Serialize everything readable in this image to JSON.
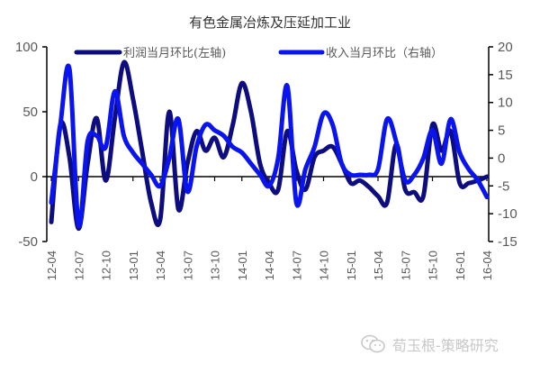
{
  "title": "有色金属冶炼及压延加工业",
  "watermark": "荀玉根-策略研究",
  "colors": {
    "profit": "#0d0d80",
    "revenue": "#0a14f0",
    "axis": "#000000",
    "text": "#595959"
  },
  "chart_data": {
    "type": "line",
    "title": "有色金属冶炼及压延加工业",
    "xlabel": "",
    "ylabel_left": "利润当月环比",
    "ylabel_right": "收入当月环比",
    "ylim_left": [
      -50,
      100
    ],
    "ylim_right": [
      -15,
      20
    ],
    "yticks_left": [
      100,
      50,
      0,
      -50
    ],
    "yticks_right": [
      20,
      15,
      10,
      5,
      0,
      -5,
      -10,
      -15
    ],
    "grid": false,
    "legend_position": "top",
    "x_tick_labels": [
      "12-04",
      "12-07",
      "12-10",
      "13-01",
      "13-04",
      "13-07",
      "13-10",
      "14-01",
      "14-04",
      "14-07",
      "14-10",
      "15-01",
      "15-04",
      "15-07",
      "15-10",
      "16-01",
      "16-04"
    ],
    "x": [
      "12-04",
      "12-05",
      "12-06",
      "12-07",
      "12-08",
      "12-09",
      "12-10",
      "12-11",
      "12-12",
      "13-01",
      "13-02",
      "13-03",
      "13-04",
      "13-05",
      "13-06",
      "13-07",
      "13-08",
      "13-09",
      "13-10",
      "13-11",
      "13-12",
      "14-01",
      "14-02",
      "14-03",
      "14-04",
      "14-05",
      "14-06",
      "14-07",
      "14-08",
      "14-09",
      "14-10",
      "14-11",
      "14-12",
      "15-01",
      "15-02",
      "15-03",
      "15-04",
      "15-05",
      "15-06",
      "15-07",
      "15-08",
      "15-09",
      "15-10",
      "15-11",
      "15-12",
      "16-01",
      "16-02",
      "16-03",
      "16-04"
    ],
    "series": [
      {
        "name": "利润当月环比(左轴)",
        "axis": "left",
        "values": [
          -35,
          40,
          15,
          -40,
          10,
          45,
          -3,
          45,
          88,
          60,
          20,
          -20,
          -33,
          50,
          -25,
          10,
          35,
          20,
          30,
          15,
          40,
          72,
          50,
          10,
          -5,
          -10,
          35,
          5,
          -10,
          15,
          20,
          23,
          10,
          -5,
          -3,
          -8,
          -15,
          -20,
          25,
          -10,
          -12,
          -15,
          40,
          20,
          35,
          -5,
          -5,
          -3,
          0
        ]
      },
      {
        "name": "收入当月环比(右轴)",
        "axis": "right",
        "values": [
          -8,
          6,
          16,
          -12,
          3,
          4,
          2,
          12,
          4,
          1,
          -1,
          -3,
          -5,
          0,
          7,
          -6,
          2,
          6,
          5,
          4,
          2,
          1,
          -1,
          -3,
          -5,
          0,
          13,
          -8,
          -2,
          2,
          8,
          6,
          -1,
          -3,
          -3,
          -3,
          -2,
          7,
          3,
          -4,
          -3,
          0,
          5,
          -1,
          7,
          1,
          -2,
          -4,
          -7
        ]
      }
    ]
  },
  "legend": {
    "profit_label": "利润当月环比(左轴)",
    "revenue_label": "收入当月环比（右轴）"
  }
}
